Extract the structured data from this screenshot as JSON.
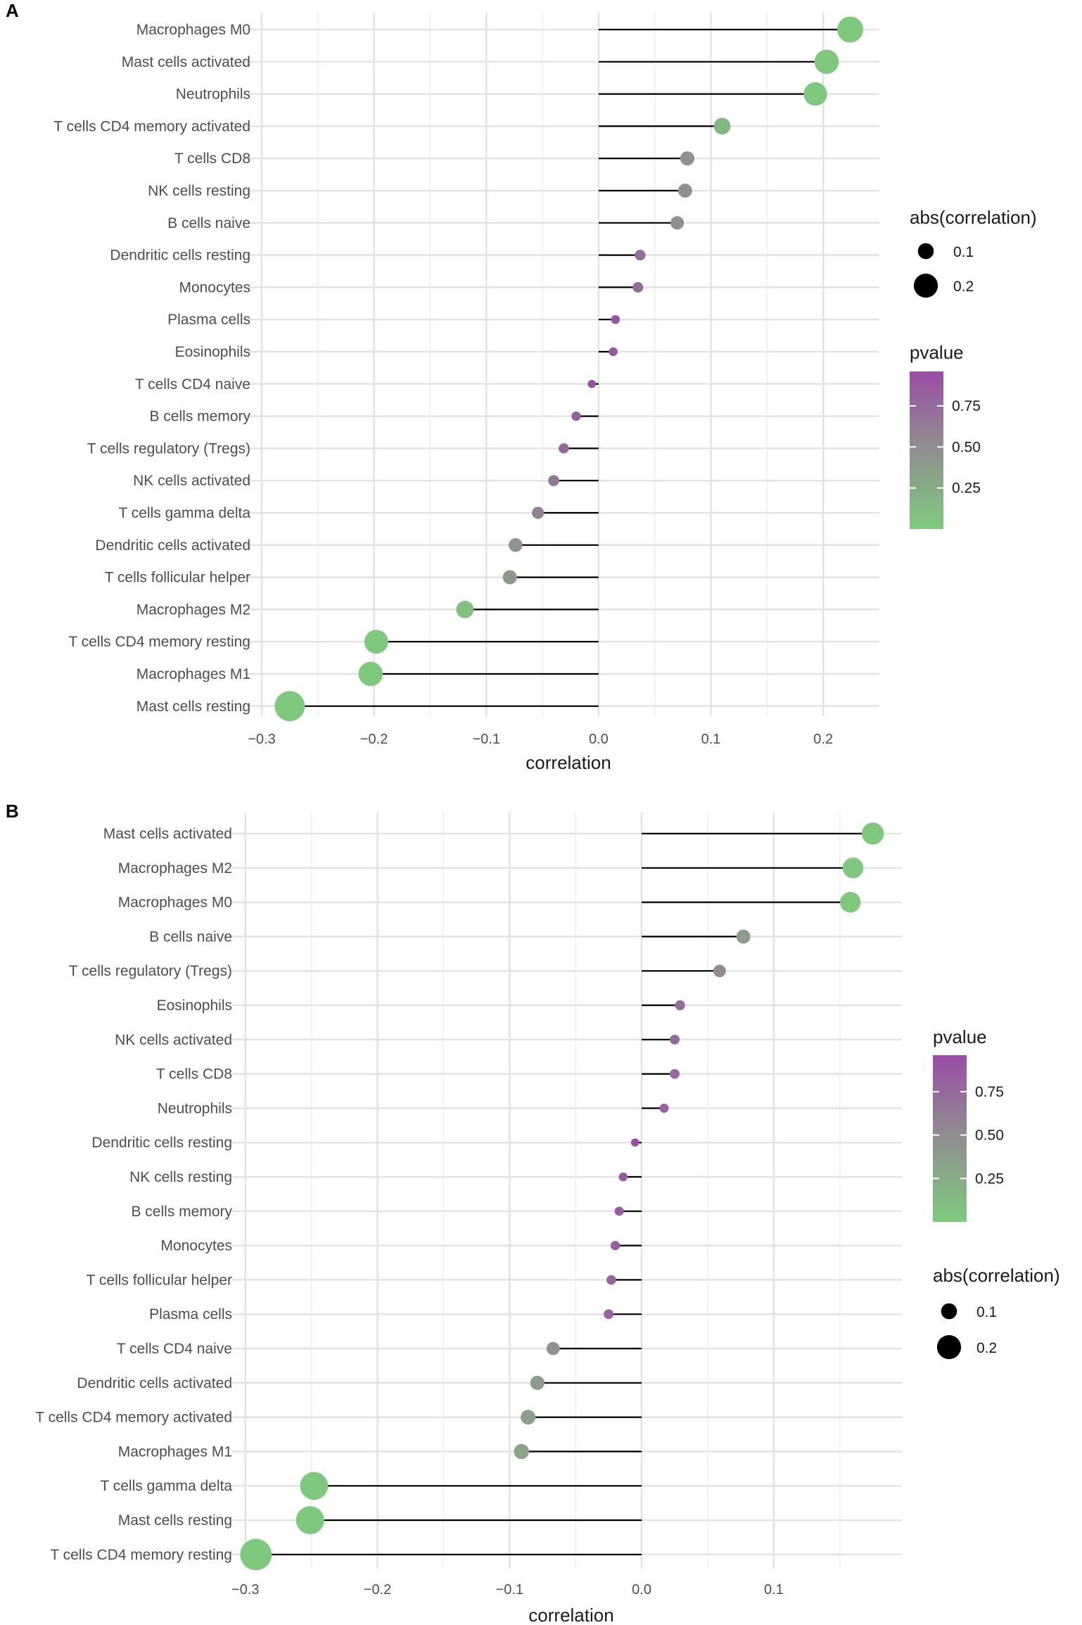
{
  "chart_data": [
    {
      "type": "lollipop",
      "panel_label": "A",
      "xlabel": "correlation",
      "xlim": [
        -0.315,
        0.25
      ],
      "x_ticks": [
        -0.3,
        -0.2,
        -0.1,
        0.0,
        0.1,
        0.2
      ],
      "x_tick_labels": [
        "−0.3",
        "−0.2",
        "−0.1",
        "0.0",
        "0.1",
        "0.2"
      ],
      "categories": [
        "Macrophages M0",
        "Mast cells activated",
        "Neutrophils",
        "T cells CD4 memory activated",
        "T cells CD8",
        "NK cells resting",
        "B cells naive",
        "Dendritic cells resting",
        "Monocytes",
        "Plasma cells",
        "Eosinophils",
        "T cells CD4 naive",
        "B cells memory",
        "T cells regulatory (Tregs)",
        "NK cells activated",
        "T cells gamma delta",
        "Dendritic cells activated",
        "T cells follicular helper",
        "Macrophages M2",
        "T cells CD4 memory resting",
        "Macrophages M1",
        "Mast cells resting"
      ],
      "values": [
        0.224,
        0.203,
        0.193,
        0.11,
        0.079,
        0.077,
        0.07,
        0.037,
        0.035,
        0.015,
        0.013,
        -0.006,
        -0.02,
        -0.031,
        -0.04,
        -0.054,
        -0.074,
        -0.079,
        -0.119,
        -0.198,
        -0.203,
        -0.275
      ],
      "pvalues": [
        0.01,
        0.02,
        0.02,
        0.15,
        0.45,
        0.45,
        0.47,
        0.72,
        0.73,
        0.88,
        0.89,
        0.96,
        0.84,
        0.78,
        0.66,
        0.58,
        0.44,
        0.41,
        0.09,
        0.01,
        0.01,
        0.01
      ],
      "size_legend": {
        "title": "abs(correlation)",
        "labels": [
          "0.1",
          "0.2"
        ],
        "values": [
          0.1,
          0.2
        ]
      },
      "color_legend": {
        "title": "pvalue",
        "labels": [
          "0.75",
          "0.50",
          "0.25"
        ],
        "values": [
          0.75,
          0.5,
          0.25
        ],
        "range": [
          0.0,
          0.96
        ]
      },
      "legend_position": "right"
    },
    {
      "type": "lollipop",
      "panel_label": "B",
      "xlabel": "correlation",
      "xlim": [
        -0.31,
        0.197
      ],
      "x_ticks": [
        -0.3,
        -0.2,
        -0.1,
        0.0,
        0.1
      ],
      "x_tick_labels": [
        "−0.3",
        "−0.2",
        "−0.1",
        "0.0",
        "0.1"
      ],
      "categories": [
        "Mast cells activated",
        "Macrophages M2",
        "Macrophages M0",
        "B cells naive",
        "T cells regulatory (Tregs)",
        "Eosinophils",
        "NK cells activated",
        "T cells CD8",
        "Neutrophils",
        "Dendritic cells resting",
        "NK cells resting",
        "B cells memory",
        "Monocytes",
        "T cells follicular helper",
        "Plasma cells",
        "T cells CD4 naive",
        "Dendritic cells activated",
        "T cells CD4 memory activated",
        "Macrophages M1",
        "T cells gamma delta",
        "Mast cells resting",
        "T cells CD4 memory resting"
      ],
      "values": [
        0.175,
        0.16,
        0.158,
        0.077,
        0.059,
        0.029,
        0.025,
        0.025,
        0.017,
        -0.005,
        -0.014,
        -0.017,
        -0.02,
        -0.023,
        -0.025,
        -0.067,
        -0.079,
        -0.086,
        -0.091,
        -0.248,
        -0.251,
        -0.292
      ],
      "pvalues": [
        0.01,
        0.02,
        0.02,
        0.38,
        0.5,
        0.72,
        0.76,
        0.76,
        0.82,
        0.96,
        0.88,
        0.85,
        0.83,
        0.8,
        0.79,
        0.45,
        0.38,
        0.35,
        0.32,
        0.01,
        0.01,
        0.01
      ],
      "size_legend": {
        "title": "abs(correlation)",
        "labels": [
          "0.1",
          "0.2"
        ],
        "values": [
          0.1,
          0.2
        ]
      },
      "color_legend": {
        "title": "pvalue",
        "labels": [
          "0.75",
          "0.50",
          "0.25"
        ],
        "values": [
          0.75,
          0.5,
          0.25
        ],
        "range": [
          0.0,
          0.96
        ]
      },
      "legend_position": "right"
    }
  ],
  "colors": {
    "low_pvalue": "#7fca7e",
    "mid_pvalue": "#8f8f8f",
    "high_pvalue": "#9b4ea6",
    "stem": "#000000",
    "grid_major": "#e3e3e3",
    "grid_minor": "#efefef",
    "legend_key": "#000000"
  }
}
